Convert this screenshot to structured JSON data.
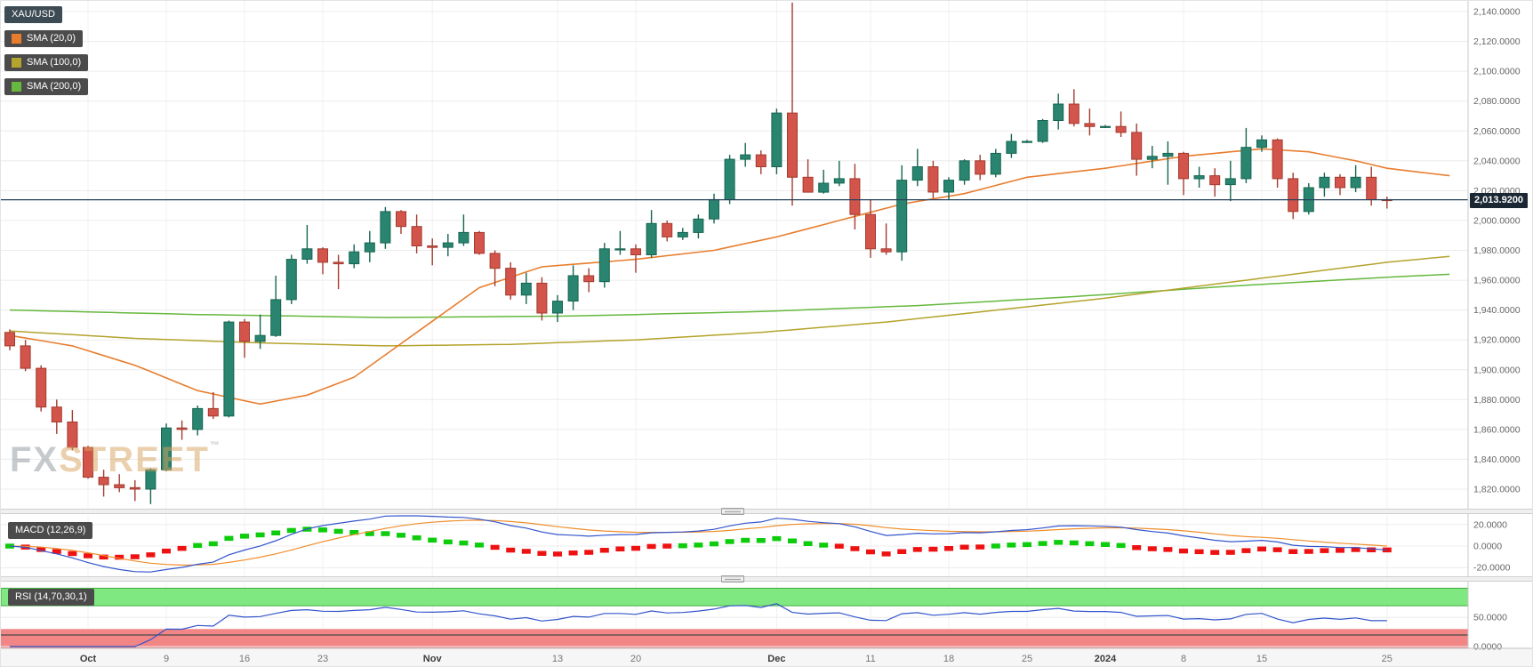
{
  "legend": {
    "symbol": "XAU/USD",
    "sma20": "SMA (20,0)",
    "sma100": "SMA (100,0)",
    "sma200": "SMA (200,0)",
    "macd": "MACD (12,26,9)",
    "rsi": "RSI (14,70,30,1)"
  },
  "price_axis": {
    "current_label": "2,013.9200"
  },
  "watermark": {
    "fx": "FX",
    "street": "STREET",
    "tm": "™"
  },
  "colors": {
    "candle_up": "#2a8570",
    "candle_up_border": "#156450",
    "candle_down": "#d2544a",
    "candle_down_border": "#a33b2e",
    "sma20": "#e87d2e",
    "sma100": "#b4a32c",
    "sma200": "#66b83e",
    "macd_line": "#3355cc",
    "macd_signal": "#ef8e2b",
    "hist_pos": "#0ccc0c",
    "hist_neg": "#ee1111",
    "rsi_line": "#3355cc",
    "rsi_upper_band": "#80e880",
    "rsi_upper_border": "#3faa3f",
    "rsi_lower_band": "#f28686",
    "rsi_lower_line": "#4a4a4a",
    "price_line": "#26425a",
    "price_badge": "#1b2733",
    "badge_bg": "#4b4b4b",
    "symbol_badge_bg": "#3c4b54",
    "grid": "#ececec",
    "axis_text": "#666666"
  },
  "chart_data": [
    {
      "type": "candlestick",
      "pair": "XAU/USD",
      "y_axis": {
        "min": 1820,
        "max": 2140,
        "step": 20
      },
      "current_price": 2013.92,
      "x_labels": [
        {
          "i": 5,
          "label": "Oct",
          "bold": true
        },
        {
          "i": 10,
          "label": "9"
        },
        {
          "i": 15,
          "label": "16"
        },
        {
          "i": 20,
          "label": "23"
        },
        {
          "i": 27,
          "label": "Nov",
          "bold": true
        },
        {
          "i": 35,
          "label": "13"
        },
        {
          "i": 40,
          "label": "20"
        },
        {
          "i": 49,
          "label": "Dec",
          "bold": true
        },
        {
          "i": 55,
          "label": "11"
        },
        {
          "i": 60,
          "label": "18"
        },
        {
          "i": 65,
          "label": "25"
        },
        {
          "i": 70,
          "label": "2024",
          "bold": true
        },
        {
          "i": 75,
          "label": "8"
        },
        {
          "i": 80,
          "label": "15"
        },
        {
          "i": 88,
          "label": "25"
        }
      ],
      "candles": [
        [
          1925,
          1927,
          1913,
          1916
        ],
        [
          1916,
          1920,
          1899,
          1901
        ],
        [
          1901,
          1903,
          1872,
          1875
        ],
        [
          1875,
          1880,
          1857,
          1865
        ],
        [
          1865,
          1873,
          1846,
          1848
        ],
        [
          1848,
          1849,
          1827,
          1828
        ],
        [
          1828,
          1833,
          1815,
          1823
        ],
        [
          1823,
          1830,
          1818,
          1821
        ],
        [
          1821,
          1826,
          1812,
          1820
        ],
        [
          1820,
          1834,
          1810,
          1833
        ],
        [
          1833,
          1864,
          1832,
          1861
        ],
        [
          1861,
          1866,
          1853,
          1860
        ],
        [
          1860,
          1876,
          1856,
          1874
        ],
        [
          1874,
          1885,
          1867,
          1869
        ],
        [
          1869,
          1933,
          1868,
          1932
        ],
        [
          1932,
          1934,
          1908,
          1919
        ],
        [
          1919,
          1937,
          1914,
          1923
        ],
        [
          1923,
          1963,
          1922,
          1947
        ],
        [
          1947,
          1977,
          1944,
          1974
        ],
        [
          1974,
          1997,
          1971,
          1981
        ],
        [
          1981,
          1982,
          1964,
          1972
        ],
        [
          1972,
          1977,
          1954,
          1971
        ],
        [
          1971,
          1984,
          1968,
          1979
        ],
        [
          1979,
          1993,
          1972,
          1985
        ],
        [
          1985,
          2009,
          1981,
          2006
        ],
        [
          2006,
          2007,
          1991,
          1996
        ],
        [
          1996,
          2004,
          1978,
          1983
        ],
        [
          1983,
          1988,
          1970,
          1982
        ],
        [
          1982,
          1991,
          1976,
          1985
        ],
        [
          1985,
          2004,
          1983,
          1992
        ],
        [
          1992,
          1993,
          1977,
          1978
        ],
        [
          1978,
          1980,
          1956,
          1968
        ],
        [
          1968,
          1972,
          1947,
          1950
        ],
        [
          1950,
          1965,
          1944,
          1958
        ],
        [
          1958,
          1962,
          1933,
          1938
        ],
        [
          1938,
          1950,
          1932,
          1946
        ],
        [
          1946,
          1970,
          1940,
          1963
        ],
        [
          1963,
          1968,
          1952,
          1959
        ],
        [
          1959,
          1985,
          1955,
          1981
        ],
        [
          1981,
          1993,
          1977,
          1981
        ],
        [
          1981,
          1984,
          1965,
          1977
        ],
        [
          1977,
          2007,
          1975,
          1998
        ],
        [
          1998,
          2000,
          1986,
          1989
        ],
        [
          1989,
          1995,
          1987,
          1992
        ],
        [
          1992,
          2004,
          1988,
          2001
        ],
        [
          2001,
          2018,
          1998,
          2014
        ],
        [
          2014,
          2044,
          2011,
          2041
        ],
        [
          2041,
          2052,
          2036,
          2044
        ],
        [
          2044,
          2047,
          2031,
          2036
        ],
        [
          2036,
          2075,
          2031,
          2072
        ],
        [
          2072,
          2146,
          2010,
          2029
        ],
        [
          2029,
          2041,
          2019,
          2019
        ],
        [
          2019,
          2034,
          2018,
          2025
        ],
        [
          2025,
          2040,
          2023,
          2028
        ],
        [
          2028,
          2038,
          1994,
          2004
        ],
        [
          2004,
          2014,
          1975,
          1981
        ],
        [
          1981,
          1998,
          1977,
          1979
        ],
        [
          1979,
          2037,
          1973,
          2027
        ],
        [
          2027,
          2048,
          2023,
          2036
        ],
        [
          2036,
          2040,
          2015,
          2019
        ],
        [
          2019,
          2029,
          2014,
          2027
        ],
        [
          2027,
          2041,
          2024,
          2040
        ],
        [
          2040,
          2044,
          2027,
          2031
        ],
        [
          2031,
          2048,
          2029,
          2045
        ],
        [
          2045,
          2058,
          2042,
          2053
        ],
        [
          2053,
          2054,
          2052,
          2053
        ],
        [
          2053,
          2068,
          2052,
          2067
        ],
        [
          2067,
          2085,
          2061,
          2078
        ],
        [
          2078,
          2088,
          2063,
          2065
        ],
        [
          2065,
          2075,
          2057,
          2063
        ],
        [
          2063,
          2064,
          2062,
          2063
        ],
        [
          2063,
          2073,
          2056,
          2059
        ],
        [
          2059,
          2065,
          2030,
          2041
        ],
        [
          2041,
          2050,
          2035,
          2043
        ],
        [
          2043,
          2053,
          2024,
          2045
        ],
        [
          2045,
          2046,
          2017,
          2028
        ],
        [
          2028,
          2036,
          2022,
          2030
        ],
        [
          2030,
          2035,
          2016,
          2024
        ],
        [
          2024,
          2040,
          2013,
          2028
        ],
        [
          2028,
          2062,
          2025,
          2049
        ],
        [
          2049,
          2057,
          2046,
          2054
        ],
        [
          2054,
          2055,
          2022,
          2028
        ],
        [
          2028,
          2032,
          2001,
          2006
        ],
        [
          2006,
          2025,
          2004,
          2022
        ],
        [
          2022,
          2032,
          2016,
          2029
        ],
        [
          2029,
          2031,
          2017,
          2022
        ],
        [
          2022,
          2037,
          2019,
          2029
        ],
        [
          2029,
          2036,
          2010,
          2014
        ],
        [
          2014,
          2016,
          2008,
          2013.92
        ]
      ],
      "overlays": {
        "sma20": [
          [
            0,
            1923
          ],
          [
            4,
            1916
          ],
          [
            8,
            1903
          ],
          [
            12,
            1886
          ],
          [
            16,
            1877
          ],
          [
            19,
            1883
          ],
          [
            22,
            1895
          ],
          [
            26,
            1925
          ],
          [
            30,
            1955
          ],
          [
            34,
            1969
          ],
          [
            40,
            1974
          ],
          [
            45,
            1980
          ],
          [
            49,
            1989
          ],
          [
            53,
            2000
          ],
          [
            57,
            2011
          ],
          [
            61,
            2018
          ],
          [
            65,
            2029
          ],
          [
            70,
            2035
          ],
          [
            75,
            2043
          ],
          [
            80,
            2048
          ],
          [
            83,
            2046
          ],
          [
            86,
            2040
          ],
          [
            88,
            2035
          ],
          [
            92,
            2030
          ]
        ],
        "sma100": [
          [
            0,
            1926
          ],
          [
            8,
            1921
          ],
          [
            16,
            1918
          ],
          [
            24,
            1916
          ],
          [
            32,
            1917
          ],
          [
            40,
            1920
          ],
          [
            48,
            1925
          ],
          [
            56,
            1932
          ],
          [
            64,
            1941
          ],
          [
            70,
            1948
          ],
          [
            76,
            1956
          ],
          [
            82,
            1964
          ],
          [
            88,
            1972
          ],
          [
            92,
            1976
          ]
        ],
        "sma200": [
          [
            0,
            1940
          ],
          [
            12,
            1937
          ],
          [
            24,
            1935
          ],
          [
            36,
            1936
          ],
          [
            48,
            1939
          ],
          [
            58,
            1943
          ],
          [
            68,
            1949
          ],
          [
            78,
            1956
          ],
          [
            88,
            1962
          ],
          [
            92,
            1964
          ]
        ]
      }
    },
    {
      "type": "macd",
      "params": [
        12,
        26,
        9
      ],
      "ticks": [
        {
          "v": 20,
          "label": "20.0000"
        },
        {
          "v": 0,
          "label": "0.0000"
        },
        {
          "v": -20,
          "label": "-20.0000"
        }
      ]
    },
    {
      "type": "rsi",
      "params": [
        14,
        70,
        30,
        1
      ],
      "bands": {
        "upper": [
          70,
          100
        ],
        "lower": [
          0,
          30
        ]
      },
      "ticks": [
        {
          "v": 50,
          "label": "50.0000"
        },
        {
          "v": 0,
          "label": "0.0000"
        }
      ]
    }
  ]
}
